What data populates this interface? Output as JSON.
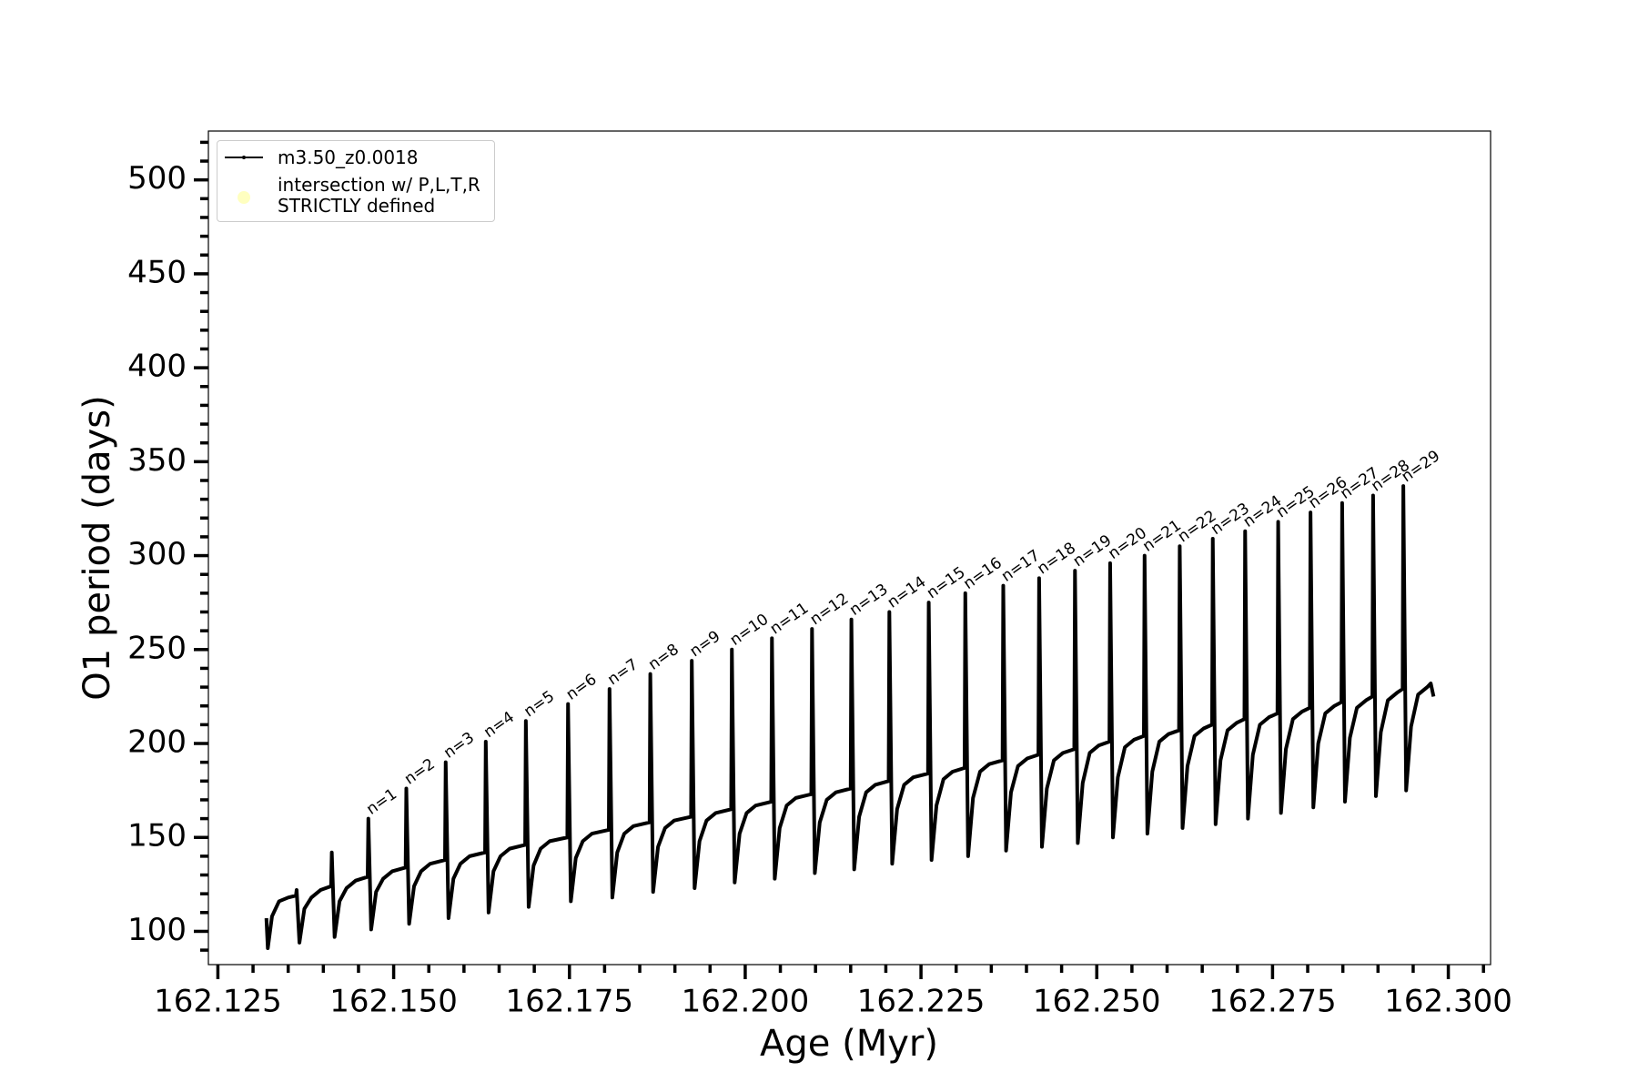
{
  "chart_data": {
    "type": "line",
    "xlabel": "Age (Myr)",
    "ylabel": "O1 period (days)",
    "xlim": [
      162.12365,
      162.30601
    ],
    "ylim": [
      82.3,
      526
    ],
    "xticks": [
      162.125,
      {
        "value": 162.15,
        "label": "162.150"
      },
      162.175,
      {
        "value": 162.2,
        "label": "162.200"
      },
      162.225,
      {
        "value": 162.25,
        "label": "162.250"
      },
      162.275,
      {
        "value": 162.3,
        "label": "162.300"
      }
    ],
    "xminorticks": [
      162.13,
      162.135,
      162.14,
      162.145,
      162.155,
      162.16,
      162.165,
      162.17,
      162.18,
      162.185,
      162.19,
      162.195,
      162.205,
      162.21,
      162.215,
      162.22,
      162.23,
      162.235,
      162.24,
      162.245,
      162.255,
      162.26,
      162.265,
      162.27,
      162.28,
      162.285,
      162.29,
      162.295,
      162.305
    ],
    "yticks": [
      100,
      150,
      200,
      250,
      300,
      350,
      400,
      450,
      500
    ],
    "yminorticks": [
      90,
      110,
      120,
      130,
      140,
      160,
      170,
      180,
      190,
      210,
      220,
      230,
      240,
      260,
      270,
      280,
      290,
      310,
      320,
      330,
      340,
      360,
      370,
      380,
      390,
      410,
      420,
      430,
      440,
      460,
      470,
      480,
      490,
      510,
      520
    ],
    "grid": false,
    "legend": "upper left",
    "series": [
      {
        "name": "m3.50_z0.0018",
        "color": "#000000",
        "x": [
          162.1319,
          162.1321,
          162.1327,
          162.1337,
          162.135,
          162.1361,
          162.1362,
          162.1366,
          162.1373,
          162.1383,
          162.1396,
          162.1411,
          162.1412,
          162.1416,
          162.1423,
          162.1433,
          162.1446,
          162.1463,
          162.1464,
          162.1468,
          162.1475,
          162.1485,
          162.1498,
          162.1517,
          162.1518,
          162.1522,
          162.1529,
          162.1539,
          162.1552,
          162.1573,
          162.1574,
          162.1578,
          162.1585,
          162.1595,
          162.1608,
          162.163,
          162.1631,
          162.1635,
          162.1642,
          162.1652,
          162.1665,
          162.1687,
          162.1688,
          162.1692,
          162.1699,
          162.1709,
          162.1722,
          162.1747,
          162.1748,
          162.1752,
          162.1759,
          162.1769,
          162.1782,
          162.1806,
          162.1807,
          162.1811,
          162.1818,
          162.1828,
          162.1841,
          162.1864,
          162.1865,
          162.1869,
          162.1876,
          162.1886,
          162.1899,
          162.1923,
          162.1924,
          162.1928,
          162.1935,
          162.1945,
          162.1958,
          162.198,
          162.1981,
          162.1985,
          162.1992,
          162.2002,
          162.2015,
          162.2037,
          162.2038,
          162.2042,
          162.2049,
          162.2059,
          162.2072,
          162.2094,
          162.2095,
          162.2099,
          162.2106,
          162.2116,
          162.2129,
          162.215,
          162.2151,
          162.2155,
          162.2162,
          162.2172,
          162.2185,
          162.2204,
          162.2205,
          162.2209,
          162.2216,
          162.2226,
          162.2239,
          162.226,
          162.2261,
          162.2265,
          162.2272,
          162.2282,
          162.2295,
          162.2312,
          162.2313,
          162.2317,
          162.2324,
          162.2334,
          162.2347,
          162.2366,
          162.2367,
          162.2371,
          162.2378,
          162.2388,
          162.2401,
          162.2417,
          162.2418,
          162.2422,
          162.2429,
          162.2439,
          162.2452,
          162.2468,
          162.2469,
          162.2473,
          162.248,
          162.249,
          162.2503,
          162.2518,
          162.2519,
          162.2523,
          162.253,
          162.254,
          162.2553,
          162.2567,
          162.2568,
          162.2572,
          162.2579,
          162.2589,
          162.2602,
          162.2617,
          162.2618,
          162.2622,
          162.2629,
          162.2639,
          162.2652,
          162.2664,
          162.2665,
          162.2669,
          162.2676,
          162.2686,
          162.2699,
          162.271,
          162.2711,
          162.2715,
          162.2722,
          162.2732,
          162.2745,
          162.2757,
          162.2758,
          162.2762,
          162.2769,
          162.2779,
          162.2792,
          162.2803,
          162.2804,
          162.2808,
          162.2815,
          162.2825,
          162.2838,
          162.2848,
          162.2849,
          162.2853,
          162.286,
          162.287,
          162.2883,
          162.2892,
          162.2893,
          162.2897,
          162.2904,
          162.2914,
          162.2927,
          162.2935,
          162.2936,
          162.294,
          162.2947,
          162.2957,
          162.297,
          162.2975,
          162.2979
        ],
        "values": [
          107,
          91,
          108,
          116,
          118,
          119,
          122,
          94,
          112,
          118,
          122,
          124,
          142,
          97,
          116,
          123,
          127,
          129,
          160,
          101,
          121,
          128,
          132,
          134,
          176,
          104,
          124,
          132,
          136,
          138,
          190,
          107,
          128,
          136,
          140,
          142,
          201,
          110,
          132,
          140,
          144,
          146,
          212,
          113,
          135,
          144,
          148,
          150,
          221,
          116,
          139,
          148,
          152,
          154,
          229,
          118,
          142,
          152,
          156,
          158,
          237,
          121,
          145,
          155,
          159,
          161,
          244,
          123,
          148,
          159,
          163,
          165,
          250,
          126,
          152,
          163,
          167,
          169,
          256,
          128,
          155,
          167,
          171,
          173,
          261,
          131,
          158,
          170,
          174,
          176,
          266,
          133,
          161,
          174,
          178,
          180,
          270,
          136,
          165,
          178,
          182,
          184,
          275,
          138,
          167,
          181,
          185,
          187,
          280,
          140,
          171,
          185,
          189,
          191,
          284,
          143,
          174,
          188,
          192,
          194,
          288,
          145,
          176,
          191,
          195,
          197,
          292,
          147,
          179,
          195,
          199,
          201,
          296,
          150,
          182,
          198,
          202,
          204,
          300,
          152,
          185,
          201,
          205,
          207,
          305,
          155,
          188,
          204,
          208,
          210,
          309,
          157,
          191,
          207,
          211,
          213,
          313,
          160,
          194,
          210,
          214,
          216,
          318,
          163,
          197,
          213,
          217,
          219,
          323,
          166,
          200,
          216,
          220,
          222,
          328,
          169,
          203,
          219,
          223,
          225,
          332,
          172,
          206,
          223,
          227,
          229,
          337,
          175,
          209,
          226,
          230,
          232,
          225
        ]
      },
      {
        "name": "intersection w/ P,L,T,R\nSTRICTLY defined",
        "color": "#ffffc0",
        "x": [],
        "values": []
      }
    ],
    "annotations": [
      "n=1",
      "n=2",
      "n=3",
      "n=4",
      "n=5",
      "n=6",
      "n=7",
      "n=8",
      "n=9",
      "n=10",
      "n=11",
      "n=12",
      "n=13",
      "n=14",
      "n=15",
      "n=16",
      "n=17",
      "n=18",
      "n=19",
      "n=20",
      "n=21",
      "n=22",
      "n=23",
      "n=24",
      "n=25",
      "n=26",
      "n=27",
      "n=28",
      "n=29"
    ]
  }
}
